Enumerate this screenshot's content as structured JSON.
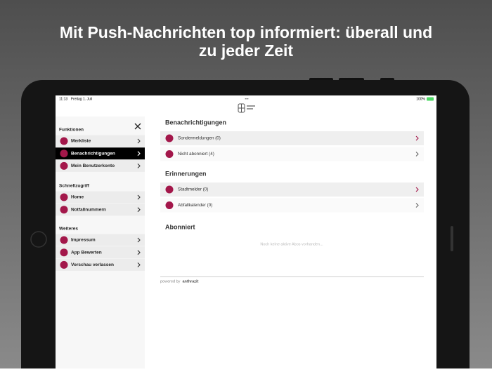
{
  "headline": {
    "lines": [
      "Mit Push-Nachrichten top informiert: überall und",
      "zu jeder Zeit"
    ]
  },
  "status_bar": {
    "time": "11:13",
    "date": "Freitag 1. Juli",
    "dots": "•••",
    "battery": "100%"
  },
  "sidebar": {
    "sections": [
      {
        "title": "Funktionen",
        "items": [
          "Merkliste",
          "Benachrichtigungen",
          "Mein Benutzerkonto"
        ]
      },
      {
        "title": "Schnellzugriff",
        "items": [
          "Home",
          "Notfallnummern"
        ]
      },
      {
        "title": "Weiteres",
        "items": [
          "Impressum",
          "App Bewerten",
          "Vorschau verlassen"
        ]
      }
    ]
  },
  "main": {
    "sections": [
      {
        "title": "Benachrichtigungen",
        "items": [
          "Sondermeldungen (0)",
          "Nicht abonniert (4)"
        ]
      },
      {
        "title": "Erinnerungen",
        "items": [
          "Stadtmelder (0)",
          "Abfallkalender (0)"
        ]
      },
      {
        "title": "Abonniert",
        "empty": "Noch keine aktive Abos vorhanden..."
      }
    ],
    "footer": {
      "prefix": "powered by",
      "brand": "anthrazit"
    }
  }
}
